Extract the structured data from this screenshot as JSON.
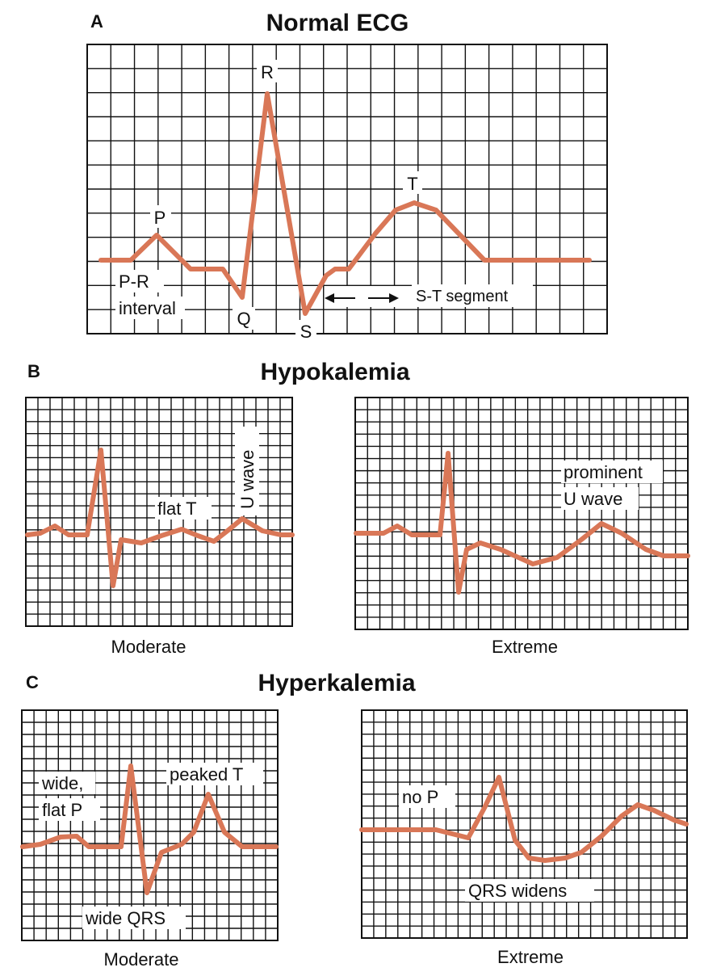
{
  "panel_a": {
    "letter": "A",
    "title": "Normal ECG",
    "labels": {
      "p": "P",
      "q": "Q",
      "r": "R",
      "s": "S",
      "t": "T",
      "pr_line1": "P-R",
      "pr_line2": "interval",
      "st_segment": "S-T segment"
    }
  },
  "panel_b": {
    "letter": "B",
    "title": "Hypokalemia",
    "moderate": {
      "caption": "Moderate",
      "flat_t": "flat T",
      "u_wave": "U wave"
    },
    "extreme": {
      "caption": "Extreme",
      "prominent_line1": "prominent",
      "prominent_line2": "U wave"
    }
  },
  "panel_c": {
    "letter": "C",
    "title": "Hyperkalemia",
    "moderate": {
      "caption": "Moderate",
      "wide_line1": "wide,",
      "wide_line2": "flat P",
      "peaked_t": "peaked T",
      "wide_qrs": "wide QRS"
    },
    "extreme": {
      "caption": "Extreme",
      "no_p": "no P",
      "qrs_widens": "QRS widens"
    }
  },
  "colors": {
    "trace": "#d97757",
    "grid": "#111111"
  }
}
